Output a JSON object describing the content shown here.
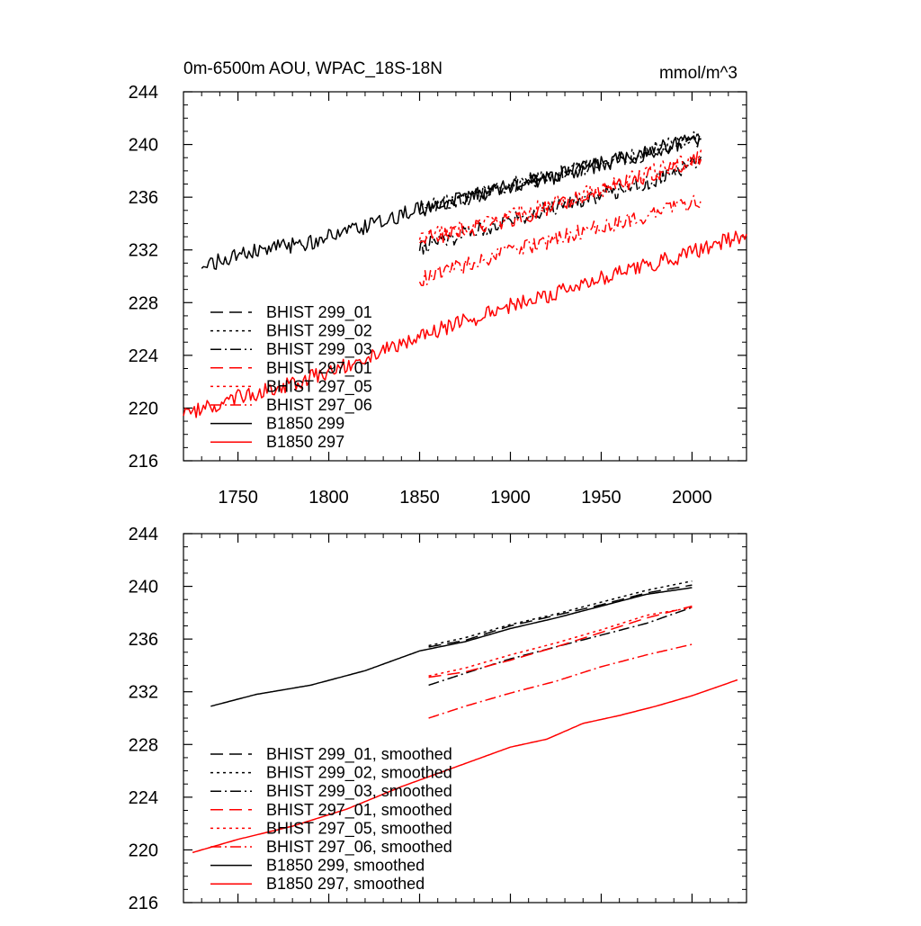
{
  "chart_data": [
    {
      "type": "line",
      "title": "0m-6500m AOU, WPAC_18S-18N",
      "units": "mmol/m^3",
      "xlim": [
        1720,
        2030
      ],
      "ylim": [
        216,
        244
      ],
      "xticks": [
        1750,
        1800,
        1850,
        1900,
        1950,
        2000
      ],
      "yticks": [
        216,
        220,
        224,
        228,
        232,
        236,
        240,
        244
      ],
      "show_x_tick_labels": true,
      "legend_position": "lower-left",
      "series": [
        {
          "name": "BHIST 299_01",
          "color": "#000000",
          "dash": "dashed",
          "x": [
            1850,
            1875,
            1900,
            1925,
            1950,
            1975,
            2005
          ],
          "y": [
            235.0,
            235.9,
            236.9,
            237.7,
            238.5,
            239.3,
            240.4
          ],
          "noise": 0.3
        },
        {
          "name": "BHIST 299_02",
          "color": "#000000",
          "dash": "dotted",
          "x": [
            1850,
            1875,
            1900,
            1925,
            1950,
            1975,
            2005
          ],
          "y": [
            235.2,
            236.0,
            237.0,
            237.8,
            238.6,
            239.5,
            240.8
          ],
          "noise": 0.3
        },
        {
          "name": "BHIST 299_03",
          "color": "#000000",
          "dash": "dashdot",
          "x": [
            1850,
            1875,
            1900,
            1925,
            1950,
            1975,
            2005
          ],
          "y": [
            232.2,
            233.2,
            234.3,
            235.3,
            236.2,
            237.1,
            238.7
          ],
          "noise": 0.3
        },
        {
          "name": "BHIST 297_01",
          "color": "#ff0000",
          "dash": "dashed",
          "x": [
            1850,
            1875,
            1900,
            1925,
            1950,
            1975,
            2005
          ],
          "y": [
            232.8,
            233.5,
            234.3,
            235.3,
            236.5,
            237.6,
            239.0
          ],
          "noise": 0.3
        },
        {
          "name": "BHIST 297_05",
          "color": "#ff0000",
          "dash": "dotted",
          "x": [
            1850,
            1875,
            1900,
            1925,
            1950,
            1975,
            2005
          ],
          "y": [
            233.0,
            233.6,
            234.6,
            235.6,
            236.6,
            237.8,
            239.0
          ],
          "noise": 0.3
        },
        {
          "name": "BHIST 297_06",
          "color": "#ff0000",
          "dash": "dashdot",
          "x": [
            1850,
            1875,
            1900,
            1925,
            1950,
            1975,
            2005
          ],
          "y": [
            229.8,
            230.8,
            231.9,
            232.8,
            233.8,
            234.6,
            235.8
          ],
          "noise": 0.3
        },
        {
          "name": "B1850 299",
          "color": "#000000",
          "dash": "solid",
          "x": [
            1730,
            1760,
            1790,
            1820,
            1850,
            1875,
            1900,
            1925,
            1950,
            1975,
            2005
          ],
          "y": [
            230.8,
            231.9,
            232.6,
            233.7,
            235.1,
            235.9,
            236.8,
            237.6,
            238.5,
            239.4,
            240.6
          ],
          "noise": 0.3
        },
        {
          "name": "B1850 297",
          "color": "#ff0000",
          "dash": "solid",
          "x": [
            1720,
            1750,
            1780,
            1810,
            1840,
            1860,
            1880,
            1900,
            1920,
            1940,
            1960,
            1980,
            2000,
            2030
          ],
          "y": [
            219.6,
            220.8,
            221.9,
            223.2,
            225.0,
            225.9,
            226.8,
            227.8,
            228.5,
            229.4,
            230.3,
            231.0,
            231.8,
            233.2
          ],
          "noise": 0.3
        }
      ]
    },
    {
      "type": "line",
      "title": "",
      "units": "",
      "xlim": [
        1720,
        2030
      ],
      "ylim": [
        216,
        244
      ],
      "xticks": [
        1750,
        1800,
        1850,
        1900,
        1950,
        2000
      ],
      "yticks": [
        216,
        220,
        224,
        228,
        232,
        236,
        240,
        244
      ],
      "show_x_tick_labels": false,
      "legend_position": "lower-left",
      "series": [
        {
          "name": "BHIST 299_01, smoothed",
          "color": "#000000",
          "dash": "dashed",
          "x": [
            1855,
            1875,
            1900,
            1925,
            1950,
            1975,
            2000
          ],
          "y": [
            235.4,
            235.9,
            237.0,
            237.8,
            238.6,
            239.5,
            240.1
          ],
          "noise": 0
        },
        {
          "name": "BHIST 299_02, smoothed",
          "color": "#000000",
          "dash": "dotted",
          "x": [
            1855,
            1875,
            1900,
            1925,
            1950,
            1975,
            2000
          ],
          "y": [
            235.5,
            236.1,
            237.1,
            237.9,
            238.8,
            239.7,
            240.4
          ],
          "noise": 0
        },
        {
          "name": "BHIST 299_03, smoothed",
          "color": "#000000",
          "dash": "dashdot",
          "x": [
            1855,
            1875,
            1900,
            1925,
            1950,
            1975,
            2000
          ],
          "y": [
            232.5,
            233.4,
            234.5,
            235.4,
            236.3,
            237.2,
            238.4
          ],
          "noise": 0
        },
        {
          "name": "BHIST 297_01, smoothed",
          "color": "#ff0000",
          "dash": "dashed",
          "x": [
            1855,
            1875,
            1900,
            1925,
            1950,
            1975,
            2000
          ],
          "y": [
            233.1,
            233.5,
            234.4,
            235.4,
            236.5,
            237.6,
            238.5
          ],
          "noise": 0
        },
        {
          "name": "BHIST 297_05, smoothed",
          "color": "#ff0000",
          "dash": "dotted",
          "x": [
            1855,
            1875,
            1900,
            1925,
            1950,
            1975,
            2000
          ],
          "y": [
            233.2,
            233.8,
            234.8,
            235.7,
            236.7,
            237.8,
            238.4
          ],
          "noise": 0
        },
        {
          "name": "BHIST 297_06, smoothed",
          "color": "#ff0000",
          "dash": "dashdot",
          "x": [
            1855,
            1875,
            1900,
            1925,
            1950,
            1975,
            2000
          ],
          "y": [
            230.0,
            230.9,
            231.9,
            232.8,
            233.9,
            234.8,
            235.6
          ],
          "noise": 0
        },
        {
          "name": "B1850 299, smoothed",
          "color": "#000000",
          "dash": "solid",
          "x": [
            1735,
            1760,
            1790,
            1820,
            1850,
            1875,
            1900,
            1925,
            1950,
            1975,
            2000
          ],
          "y": [
            230.9,
            231.8,
            232.5,
            233.6,
            235.1,
            235.8,
            236.8,
            237.6,
            238.5,
            239.4,
            239.9
          ],
          "noise": 0
        },
        {
          "name": "B1850 297, smoothed",
          "color": "#ff0000",
          "dash": "solid",
          "x": [
            1725,
            1750,
            1780,
            1810,
            1840,
            1860,
            1880,
            1900,
            1920,
            1940,
            1960,
            1980,
            2000,
            2025
          ],
          "y": [
            219.8,
            220.8,
            221.8,
            223.1,
            224.8,
            225.8,
            226.8,
            227.8,
            228.4,
            229.6,
            230.2,
            230.9,
            231.7,
            232.9
          ],
          "noise": 0
        }
      ]
    }
  ]
}
